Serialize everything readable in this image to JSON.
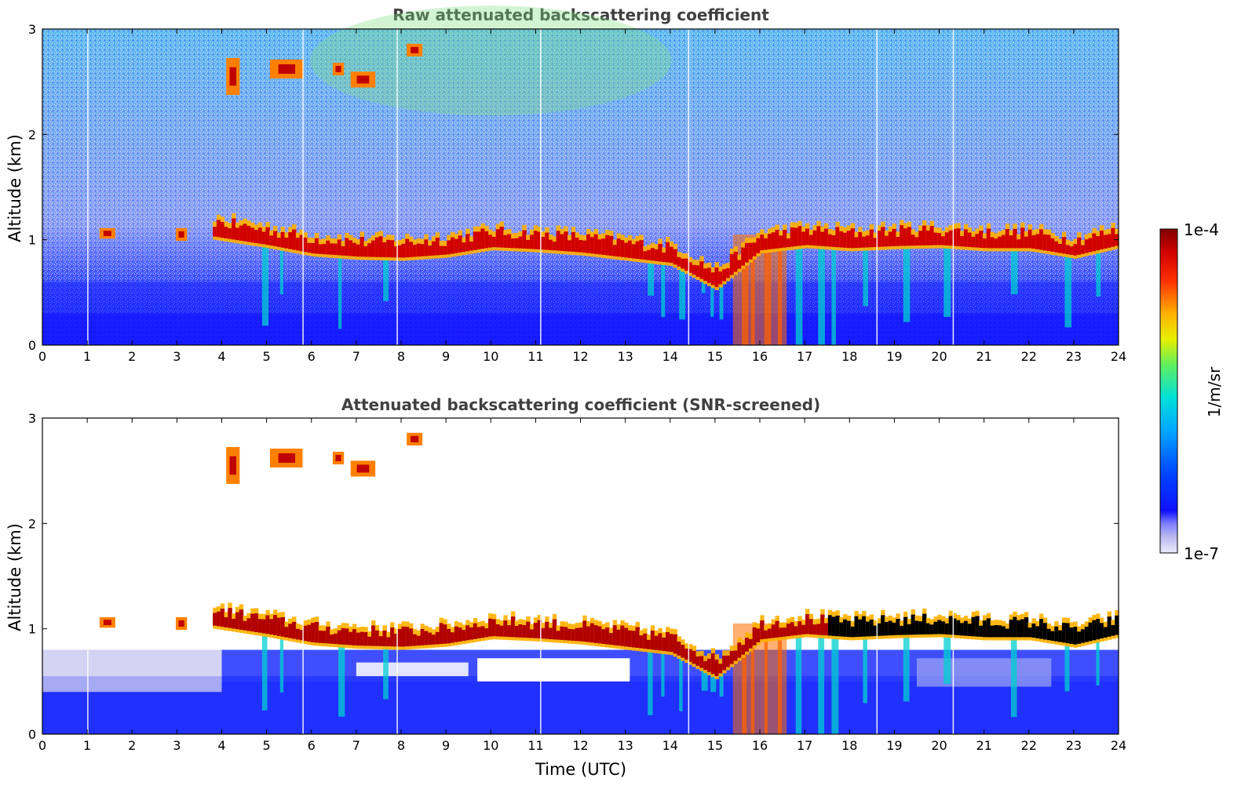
{
  "chart_data": [
    {
      "type": "heatmap",
      "title": "Raw attenuated backscattering coefficient",
      "xlabel": "",
      "ylabel": "Altitude (km)",
      "xlim": [
        0,
        24
      ],
      "ylim": [
        0,
        3
      ],
      "x_ticks": [
        "0",
        "1",
        "2",
        "3",
        "4",
        "5",
        "6",
        "7",
        "8",
        "9",
        "10",
        "11",
        "12",
        "13",
        "14",
        "15",
        "16",
        "17",
        "18",
        "19",
        "20",
        "21",
        "22",
        "23",
        "24"
      ],
      "y_ticks": [
        "0",
        "1",
        "2",
        "3"
      ],
      "cloud_base_km": [
        {
          "t": 3.8,
          "alt": 1.03
        },
        {
          "t": 5,
          "alt": 0.95
        },
        {
          "t": 6,
          "alt": 0.87
        },
        {
          "t": 7,
          "alt": 0.84
        },
        {
          "t": 8,
          "alt": 0.83
        },
        {
          "t": 9,
          "alt": 0.86
        },
        {
          "t": 10,
          "alt": 0.93
        },
        {
          "t": 11,
          "alt": 0.91
        },
        {
          "t": 12,
          "alt": 0.88
        },
        {
          "t": 13,
          "alt": 0.83
        },
        {
          "t": 14,
          "alt": 0.78
        },
        {
          "t": 15,
          "alt": 0.55
        },
        {
          "t": 16,
          "alt": 0.9
        },
        {
          "t": 17,
          "alt": 0.95
        },
        {
          "t": 18,
          "alt": 0.92
        },
        {
          "t": 19,
          "alt": 0.94
        },
        {
          "t": 20,
          "alt": 0.95
        },
        {
          "t": 21,
          "alt": 0.92
        },
        {
          "t": 22,
          "alt": 0.92
        },
        {
          "t": 23,
          "alt": 0.85
        },
        {
          "t": 24,
          "alt": 0.95
        }
      ]
    },
    {
      "type": "heatmap",
      "title": "Attenuated backscattering coefficient (SNR-screened)",
      "xlabel": "Time (UTC)",
      "ylabel": "Altitude (km)",
      "xlim": [
        0,
        24
      ],
      "ylim": [
        0,
        3
      ],
      "x_ticks": [
        "0",
        "1",
        "2",
        "3",
        "4",
        "5",
        "6",
        "7",
        "8",
        "9",
        "10",
        "11",
        "12",
        "13",
        "14",
        "15",
        "16",
        "17",
        "18",
        "19",
        "20",
        "21",
        "22",
        "23",
        "24"
      ],
      "y_ticks": [
        "0",
        "1",
        "2",
        "3"
      ]
    }
  ],
  "colorbar": {
    "label": "1/m/sr",
    "max_label": "1e-4",
    "min_label": "1e-7",
    "colors": [
      "#e8e8f8",
      "#b8b8f0",
      "#7070ff",
      "#0000ff",
      "#0060ff",
      "#00c0ff",
      "#00e8c0",
      "#60f060",
      "#e0f000",
      "#ffc000",
      "#ff6000",
      "#e00000",
      "#800000"
    ]
  }
}
